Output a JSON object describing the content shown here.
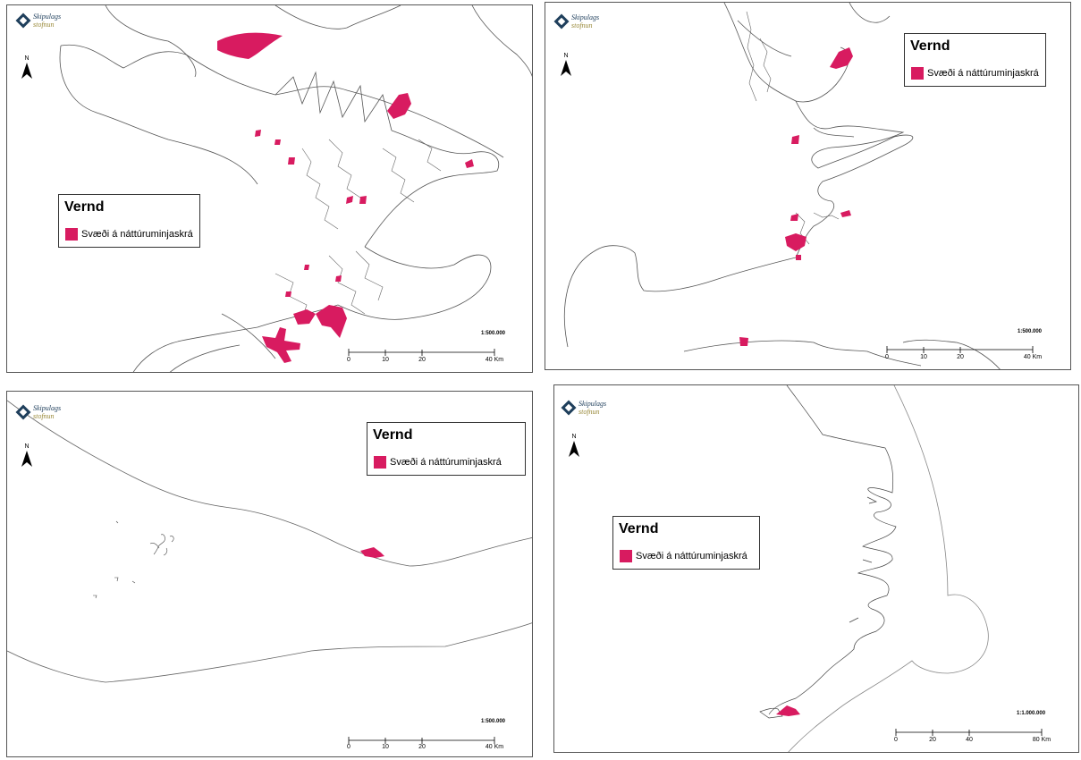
{
  "logo": {
    "line1": "Skipulags",
    "line2": "stofnun"
  },
  "north_label": "N",
  "legend": {
    "title": "Vernd",
    "item_label": "Svæði á náttúruminjaskrá",
    "item_color": "#d81b60"
  },
  "panels": [
    {
      "id": "panel-1",
      "scale_ratio": "1:500.000",
      "scale_ticks": [
        "0",
        "10",
        "20",
        "40 Km"
      ]
    },
    {
      "id": "panel-2",
      "scale_ratio": "1:500.000",
      "scale_ticks": [
        "0",
        "10",
        "20",
        "40 Km"
      ]
    },
    {
      "id": "panel-3",
      "scale_ratio": "1:500.000",
      "scale_ticks": [
        "0",
        "10",
        "20",
        "40 Km"
      ]
    },
    {
      "id": "panel-4",
      "scale_ratio": "1:1.000.000",
      "scale_ticks": [
        "0",
        "20",
        "40",
        "80 Km"
      ]
    }
  ],
  "colors": {
    "protected_area": "#d81b60",
    "coastline": "#444444",
    "boundary": "#888888"
  }
}
